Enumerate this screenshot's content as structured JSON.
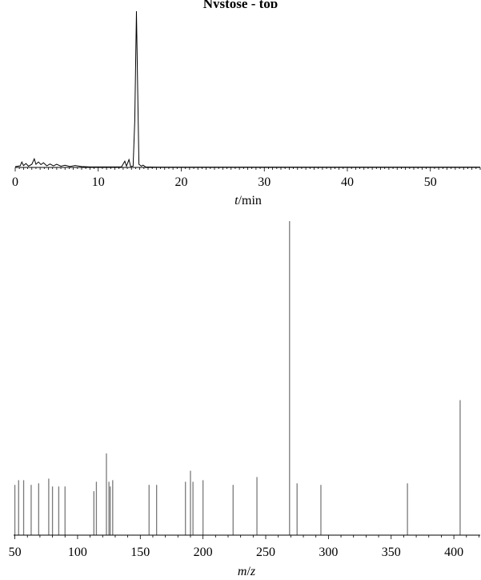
{
  "chart_data": [
    {
      "type": "line",
      "title": "Nystose - top",
      "xlabel_italic": "t",
      "xlabel_rest": "/min",
      "xlim": [
        0,
        56
      ],
      "ylim": [
        0,
        100
      ],
      "xticks": [
        0,
        10,
        20,
        30,
        40,
        50
      ],
      "series": [
        {
          "values": [
            [
              0,
              0.5
            ],
            [
              0.6,
              1.0
            ],
            [
              0.8,
              3.5
            ],
            [
              1.0,
              1.2
            ],
            [
              1.3,
              2.5
            ],
            [
              1.6,
              0.8
            ],
            [
              2.0,
              2.0
            ],
            [
              2.3,
              5.5
            ],
            [
              2.5,
              2.0
            ],
            [
              2.8,
              3.5
            ],
            [
              3.1,
              1.8
            ],
            [
              3.4,
              3.0
            ],
            [
              3.8,
              1.0
            ],
            [
              4.2,
              2.2
            ],
            [
              4.6,
              1.0
            ],
            [
              5.0,
              2.0
            ],
            [
              5.5,
              0.8
            ],
            [
              6.0,
              1.4
            ],
            [
              6.6,
              0.6
            ],
            [
              7.2,
              1.2
            ],
            [
              8.0,
              0.6
            ],
            [
              9.0,
              0.3
            ],
            [
              10.0,
              0.3
            ],
            [
              11.0,
              0.3
            ],
            [
              12.0,
              0.3
            ],
            [
              12.8,
              0.4
            ],
            [
              13.2,
              4.0
            ],
            [
              13.4,
              0.8
            ],
            [
              13.7,
              5.0
            ],
            [
              13.9,
              0.6
            ],
            [
              14.2,
              0.8
            ],
            [
              14.4,
              30.0
            ],
            [
              14.6,
              100.0
            ],
            [
              14.75,
              50.0
            ],
            [
              14.9,
              2.0
            ],
            [
              15.2,
              0.8
            ],
            [
              15.4,
              1.5
            ],
            [
              15.7,
              0.3
            ],
            [
              17.0,
              0.2
            ],
            [
              20.0,
              0.2
            ],
            [
              25.0,
              0.2
            ],
            [
              30.0,
              0.2
            ],
            [
              35.0,
              0.2
            ],
            [
              40.0,
              0.2
            ],
            [
              45.0,
              0.2
            ],
            [
              50.0,
              0.2
            ],
            [
              56.0,
              0.2
            ]
          ]
        }
      ]
    },
    {
      "type": "bar",
      "xlabel_italic1": "m",
      "xlabel_sep": "/",
      "xlabel_italic2": "z",
      "xlim": [
        49,
        421
      ],
      "ylim": [
        0,
        100
      ],
      "xticks": [
        50,
        100,
        150,
        200,
        250,
        300,
        350,
        400
      ],
      "peaks": [
        [
          50,
          16
        ],
        [
          53,
          17.5
        ],
        [
          57,
          17.5
        ],
        [
          63,
          16
        ],
        [
          69,
          16.5
        ],
        [
          77,
          18
        ],
        [
          80,
          15.5
        ],
        [
          85,
          15.5
        ],
        [
          90,
          15.5
        ],
        [
          113,
          14
        ],
        [
          115,
          17
        ],
        [
          123,
          26
        ],
        [
          125,
          17
        ],
        [
          126,
          15.5
        ],
        [
          128,
          17.5
        ],
        [
          157,
          16
        ],
        [
          163,
          16
        ],
        [
          186,
          17
        ],
        [
          190,
          20.5
        ],
        [
          192,
          17
        ],
        [
          200,
          17.5
        ],
        [
          224,
          16
        ],
        [
          243,
          18.5
        ],
        [
          269,
          100
        ],
        [
          275,
          16.5
        ],
        [
          294,
          16
        ],
        [
          363,
          16.5
        ],
        [
          405,
          43
        ]
      ]
    }
  ]
}
